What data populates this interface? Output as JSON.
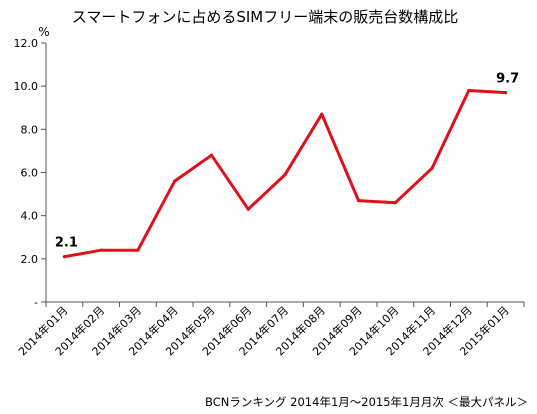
{
  "chart_data": {
    "type": "line",
    "title": "スマートフォンに占めるSIMフリー端末の販売台数構成比",
    "ylabel": "%",
    "source": "BCNランキング 2014年1月〜2015年1月月次 ＜最大パネル＞",
    "categories": [
      "2014年01月",
      "2014年02月",
      "2014年03月",
      "2014年04月",
      "2014年05月",
      "2014年06月",
      "2014年07月",
      "2014年08月",
      "2014年09月",
      "2014年10月",
      "2014年11月",
      "2014年12月",
      "2015年01月"
    ],
    "series": [
      {
        "values": [
          2.1,
          2.4,
          2.4,
          5.6,
          6.8,
          4.3,
          5.9,
          8.7,
          4.7,
          4.6,
          6.2,
          9.8,
          9.7
        ],
        "color": "#e0101a"
      }
    ],
    "ylim": [
      0,
      12
    ],
    "ytick_labels": [
      "-",
      "2.0",
      "4.0",
      "6.0",
      "8.0",
      "10.0",
      "12.0"
    ],
    "data_labels": [
      {
        "index": 0,
        "text": "2.1"
      },
      {
        "index": 12,
        "text": "9.7"
      }
    ],
    "grid": false,
    "legend": "none"
  }
}
